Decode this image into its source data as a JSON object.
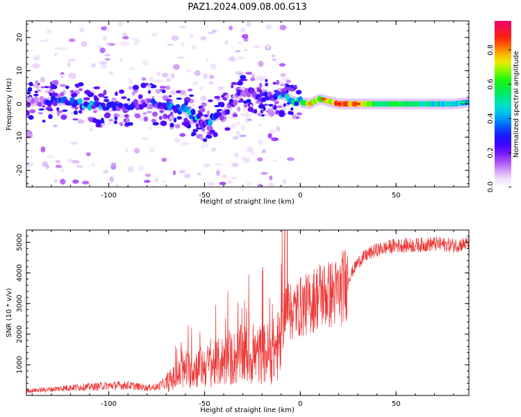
{
  "title": "PAZ1.2024.009.08.00.G13",
  "chart_data": [
    {
      "type": "heatmap",
      "xlabel": "Height of straight line (km)",
      "ylabel": "Frequency (Hz)",
      "xlim": [
        -143,
        88
      ],
      "ylim": [
        -25,
        25
      ],
      "xticks": [
        -100,
        -50,
        0,
        50
      ],
      "xtick_labels": [
        "-100",
        "-50",
        "0",
        "50"
      ],
      "yticks": [
        -20,
        -10,
        0,
        10,
        20
      ],
      "ytick_labels": [
        "-20",
        "-10",
        "0",
        "10",
        "20"
      ],
      "colorbar": {
        "label": "Normalized spectral amplitude",
        "range": [
          0,
          0.97
        ],
        "ticks": [
          0.0,
          0.2,
          0.4,
          0.6,
          0.8
        ],
        "tick_labels": [
          "0.0",
          "0.2",
          "0.4",
          "0.6",
          "0.8"
        ],
        "colormap": "white-violet-blue-cyan-green-yellow-orange-red-magenta"
      },
      "ridge": [
        {
          "x": -140,
          "y": 0.5,
          "amplitude": 0.15
        },
        {
          "x": -130,
          "y": 0.8,
          "amplitude": 0.25
        },
        {
          "x": -120,
          "y": 0.6,
          "amplitude": 0.3
        },
        {
          "x": -110,
          "y": -0.5,
          "amplitude": 0.35
        },
        {
          "x": -100,
          "y": -1.2,
          "amplitude": 0.3
        },
        {
          "x": -90,
          "y": -0.8,
          "amplitude": 0.25
        },
        {
          "x": -80,
          "y": 0.3,
          "amplitude": 0.2
        },
        {
          "x": -70,
          "y": -1.0,
          "amplitude": 0.35
        },
        {
          "x": -60,
          "y": -2.0,
          "amplitude": 0.35
        },
        {
          "x": -50,
          "y": -5.5,
          "amplitude": 0.35
        },
        {
          "x": -40,
          "y": -3.0,
          "amplitude": 0.2
        },
        {
          "x": -30,
          "y": 4.0,
          "amplitude": 0.2
        },
        {
          "x": -20,
          "y": 2.0,
          "amplitude": 0.2
        },
        {
          "x": -10,
          "y": 2.5,
          "amplitude": 0.35
        },
        {
          "x": 0,
          "y": 0.5,
          "amplitude": 0.5
        },
        {
          "x": 5,
          "y": 0.0,
          "amplitude": 0.75
        },
        {
          "x": 10,
          "y": 1.5,
          "amplitude": 0.6
        },
        {
          "x": 20,
          "y": 0.0,
          "amplitude": 0.85
        },
        {
          "x": 30,
          "y": 0.0,
          "amplitude": 0.75
        },
        {
          "x": 40,
          "y": 0.0,
          "amplitude": 0.55
        },
        {
          "x": 50,
          "y": 0.0,
          "amplitude": 0.6
        },
        {
          "x": 60,
          "y": 0.0,
          "amplitude": 0.5
        },
        {
          "x": 70,
          "y": 0.0,
          "amplitude": 0.45
        },
        {
          "x": 80,
          "y": 0.0,
          "amplitude": 0.45
        },
        {
          "x": 88,
          "y": 0.5,
          "amplitude": 0.4
        }
      ]
    },
    {
      "type": "line",
      "xlabel": "Height of straight line (km)",
      "ylabel": "SNR (10 * v/v)",
      "xlim": [
        -143,
        88
      ],
      "ylim": [
        0,
        5400
      ],
      "xticks": [
        -100,
        -50,
        0,
        50
      ],
      "xtick_labels": [
        "-100",
        "-50",
        "0",
        "50"
      ],
      "yticks": [
        1000,
        2000,
        3000,
        4000,
        5000
      ],
      "ytick_labels": [
        "1000",
        "2000",
        "3000",
        "4000",
        "5000"
      ],
      "color": "#ee3333",
      "series": [
        {
          "x": [
            -143,
            -130,
            -120,
            -110,
            -100,
            -90,
            -80,
            -75,
            -70,
            -65,
            -60,
            -55,
            -50,
            -45,
            -40,
            -35,
            -30,
            -25,
            -20,
            -15,
            -10,
            -8,
            -5,
            0,
            5,
            10,
            15,
            20,
            25,
            30,
            35,
            40,
            50,
            60,
            70,
            80,
            88
          ],
          "y": [
            150,
            200,
            260,
            280,
            320,
            330,
            250,
            280,
            420,
            600,
            800,
            900,
            950,
            1000,
            1150,
            1200,
            1350,
            1250,
            1350,
            1400,
            1700,
            3000,
            2700,
            2900,
            3000,
            3300,
            3300,
            3350,
            3800,
            4350,
            4600,
            4750,
            4900,
            4900,
            4950,
            4900,
            4950
          ]
        }
      ]
    }
  ]
}
